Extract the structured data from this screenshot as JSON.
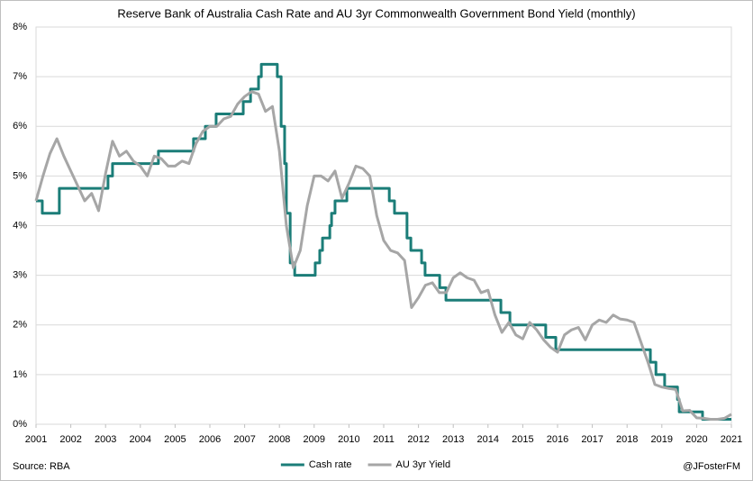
{
  "chart_data": {
    "type": "line",
    "title": "Reserve Bank of Australia Cash Rate and AU 3yr Commonwealth Government Bond Yield (monthly)",
    "source": "Source: RBA",
    "credit": "@JFosterFM",
    "xlim": [
      2001,
      2021
    ],
    "xticks": [
      2001,
      2002,
      2003,
      2004,
      2005,
      2006,
      2007,
      2008,
      2009,
      2010,
      2011,
      2012,
      2013,
      2014,
      2015,
      2016,
      2017,
      2018,
      2019,
      2020,
      2021
    ],
    "ylim": [
      0,
      8
    ],
    "yticks": [
      {
        "value": 0,
        "label": "0%"
      },
      {
        "value": 1,
        "label": "1%"
      },
      {
        "value": 2,
        "label": "2%"
      },
      {
        "value": 3,
        "label": "3%"
      },
      {
        "value": 4,
        "label": "4%"
      },
      {
        "value": 5,
        "label": "5%"
      },
      {
        "value": 6,
        "label": "6%"
      },
      {
        "value": 7,
        "label": "7%"
      },
      {
        "value": 8,
        "label": "8%"
      }
    ],
    "grid": true,
    "legend": "bottom",
    "series": [
      {
        "name": "Cash rate",
        "color": "#1b7d78",
        "x": [
          2001,
          2001.18,
          2001.18,
          2001.67,
          2001.67,
          2003.07,
          2003.07,
          2003.2,
          2003.2,
          2004.52,
          2004.52,
          2005.53,
          2005.53,
          2005.87,
          2005.87,
          2006.18,
          2006.18,
          2006.96,
          2006.96,
          2007.17,
          2007.17,
          2007.4,
          2007.4,
          2007.48,
          2007.48,
          2007.94,
          2007.94,
          2008.05,
          2008.05,
          2008.15,
          2008.15,
          2008.2,
          2008.2,
          2008.31,
          2008.31,
          2008.44,
          2008.44,
          2009.03,
          2009.03,
          2009.16,
          2009.16,
          2009.24,
          2009.24,
          2009.45,
          2009.45,
          2009.5,
          2009.5,
          2009.6,
          2009.6,
          2009.94,
          2009.94,
          2011.16,
          2011.16,
          2011.31,
          2011.31,
          2011.67,
          2011.67,
          2011.78,
          2011.78,
          2012.09,
          2012.09,
          2012.19,
          2012.19,
          2012.61,
          2012.61,
          2012.79,
          2012.79,
          2014.37,
          2014.37,
          2014.63,
          2014.63,
          2015.66,
          2015.66,
          2015.95,
          2015.95,
          2018.67,
          2018.67,
          2018.83,
          2018.83,
          2019.08,
          2019.08,
          2019.45,
          2019.45,
          2019.5,
          2019.5,
          2020.17,
          2020.17,
          2021
        ],
        "values": [
          4.5,
          4.5,
          4.25,
          4.25,
          4.75,
          4.75,
          5,
          5,
          5.25,
          5.25,
          5.5,
          5.5,
          5.75,
          5.75,
          6,
          6,
          6.25,
          6.25,
          6.5,
          6.5,
          6.75,
          6.75,
          7,
          7,
          7.25,
          7.25,
          7,
          7,
          6,
          6,
          5.25,
          5.25,
          4.25,
          4.25,
          3.25,
          3.25,
          3,
          3,
          3.25,
          3.25,
          3.5,
          3.5,
          3.75,
          3.75,
          4,
          4,
          4.25,
          4.25,
          4.5,
          4.5,
          4.75,
          4.75,
          4.5,
          4.5,
          4.25,
          4.25,
          3.75,
          3.75,
          3.5,
          3.5,
          3.25,
          3.25,
          3,
          3,
          2.75,
          2.75,
          2.5,
          2.5,
          2.25,
          2.25,
          2,
          2,
          1.75,
          1.75,
          1.5,
          1.5,
          1.25,
          1.25,
          1,
          1,
          0.75,
          0.75,
          0.5,
          0.5,
          0.25,
          0.25,
          0.1,
          0.1
        ]
      },
      {
        "name": "AU 3yr Yield",
        "color": "#a6a6a6",
        "x": [
          2001,
          2001.2,
          2001.4,
          2001.6,
          2001.8,
          2002,
          2002.2,
          2002.4,
          2002.6,
          2002.8,
          2003,
          2003.2,
          2003.4,
          2003.6,
          2003.8,
          2004,
          2004.2,
          2004.4,
          2004.6,
          2004.8,
          2005,
          2005.2,
          2005.4,
          2005.6,
          2005.8,
          2006,
          2006.2,
          2006.4,
          2006.6,
          2006.8,
          2007,
          2007.2,
          2007.4,
          2007.6,
          2007.8,
          2008,
          2008.2,
          2008.4,
          2008.6,
          2008.8,
          2009,
          2009.2,
          2009.4,
          2009.6,
          2009.8,
          2010,
          2010.2,
          2010.4,
          2010.6,
          2010.8,
          2011,
          2011.2,
          2011.4,
          2011.6,
          2011.8,
          2012,
          2012.2,
          2012.4,
          2012.6,
          2012.8,
          2013,
          2013.2,
          2013.4,
          2013.6,
          2013.8,
          2014,
          2014.2,
          2014.4,
          2014.6,
          2014.8,
          2015,
          2015.2,
          2015.4,
          2015.6,
          2015.8,
          2016,
          2016.2,
          2016.4,
          2016.6,
          2016.8,
          2017,
          2017.2,
          2017.4,
          2017.6,
          2017.8,
          2018,
          2018.2,
          2018.4,
          2018.6,
          2018.8,
          2019,
          2019.2,
          2019.4,
          2019.6,
          2019.8,
          2020,
          2020.2,
          2020.4,
          2020.6,
          2020.8,
          2021
        ],
        "values": [
          4.5,
          5.0,
          5.45,
          5.75,
          5.4,
          5.1,
          4.8,
          4.5,
          4.65,
          4.3,
          5.05,
          5.7,
          5.4,
          5.5,
          5.3,
          5.2,
          5.0,
          5.4,
          5.35,
          5.2,
          5.2,
          5.3,
          5.25,
          5.65,
          5.9,
          6.0,
          6.0,
          6.15,
          6.2,
          6.45,
          6.6,
          6.7,
          6.65,
          6.3,
          6.4,
          5.5,
          4.0,
          3.15,
          3.5,
          4.4,
          5.0,
          5.0,
          4.9,
          5.1,
          4.55,
          4.85,
          5.2,
          5.15,
          5.0,
          4.2,
          3.7,
          3.5,
          3.45,
          3.3,
          2.35,
          2.55,
          2.8,
          2.85,
          2.65,
          2.65,
          2.95,
          3.05,
          2.95,
          2.9,
          2.65,
          2.7,
          2.2,
          1.85,
          2.05,
          1.8,
          1.72,
          2.05,
          1.9,
          1.7,
          1.55,
          1.45,
          1.8,
          1.9,
          1.95,
          1.7,
          2.0,
          2.1,
          2.05,
          2.2,
          2.12,
          2.1,
          2.05,
          1.65,
          1.25,
          0.8,
          0.75,
          0.72,
          0.7,
          0.27,
          0.28,
          0.13,
          0.12,
          0.1,
          0.1,
          0.12,
          0.2
        ]
      }
    ]
  }
}
